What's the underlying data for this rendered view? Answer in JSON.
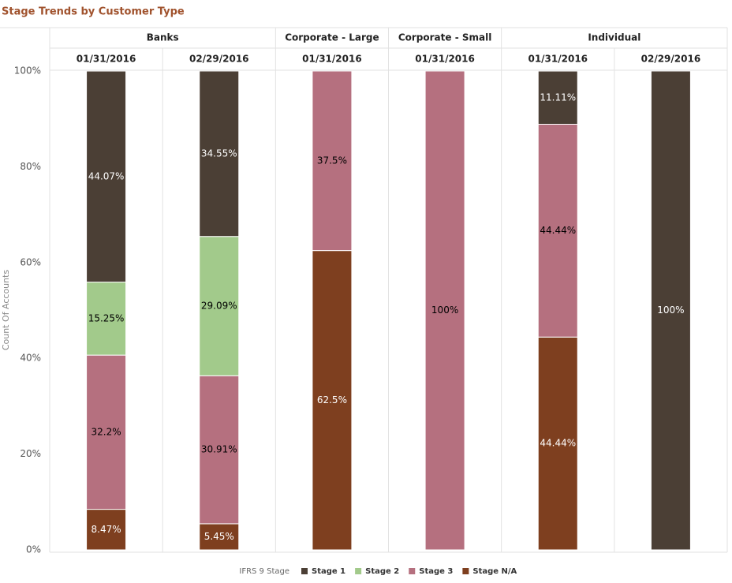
{
  "chart_data": {
    "type": "stacked-bar-100",
    "title": "Stage Trends by Customer Type",
    "y_label": "Count Of Accounts",
    "legend_title": "IFRS 9 Stage",
    "groups": [
      {
        "name": "Banks",
        "categories": [
          "01/31/2016",
          "02/29/2016"
        ]
      },
      {
        "name": "Corporate - Large",
        "categories": [
          "01/31/2016"
        ]
      },
      {
        "name": "Corporate - Small",
        "categories": [
          "01/31/2016"
        ]
      },
      {
        "name": "Individual",
        "categories": [
          "01/31/2016",
          "02/29/2016"
        ]
      }
    ],
    "ylim": [
      0,
      100
    ],
    "yticks": [
      {
        "value": 0,
        "label": "0%"
      },
      {
        "value": 20,
        "label": "20%"
      },
      {
        "value": 40,
        "label": "40%"
      },
      {
        "value": 60,
        "label": "60%"
      },
      {
        "value": 80,
        "label": "80%"
      },
      {
        "value": 100,
        "label": "100%"
      }
    ],
    "stack_order": "bottom-up",
    "series": [
      {
        "name": "Stage N/A",
        "color": "#7e3f1f",
        "label_color": "#ffffff",
        "values": [
          8.47,
          5.45,
          62.5,
          null,
          44.44,
          null
        ],
        "value_labels": [
          "8.47%",
          "5.45%",
          "62.5%",
          null,
          "44.44%",
          null
        ]
      },
      {
        "name": "Stage 3",
        "color": "#b5707f",
        "label_color": "#000000",
        "values": [
          32.2,
          30.91,
          37.5,
          100,
          44.44,
          null
        ],
        "value_labels": [
          "32.2%",
          "30.91%",
          "37.5%",
          "100%",
          "44.44%",
          null
        ]
      },
      {
        "name": "Stage 2",
        "color": "#a2ca8b",
        "label_color": "#000000",
        "values": [
          15.25,
          29.09,
          null,
          null,
          null,
          null
        ],
        "value_labels": [
          "15.25%",
          "29.09%",
          null,
          null,
          null,
          null
        ]
      },
      {
        "name": "Stage 1",
        "color": "#4b3f35",
        "label_color": "#ffffff",
        "values": [
          44.07,
          34.55,
          null,
          null,
          11.11,
          100
        ],
        "value_labels": [
          "44.07%",
          "34.55%",
          null,
          null,
          "11.11%",
          "100%"
        ]
      }
    ],
    "legend_order": [
      3,
      2,
      1,
      0
    ]
  }
}
